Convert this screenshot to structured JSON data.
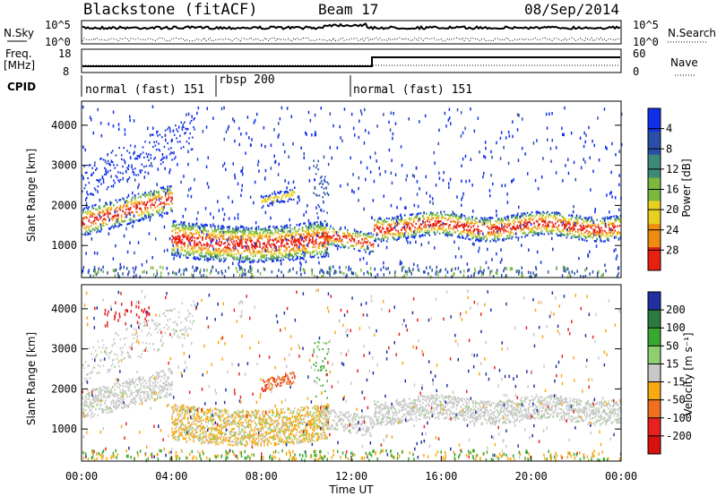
{
  "header": {
    "title": "Blackstone (fitACF)",
    "beam": "Beam 17",
    "date": "08/Sep/2014"
  },
  "top_panels": {
    "nsky_label": "N.Sky",
    "nsearch_label": "N.Search",
    "noise_ticks": [
      "10^5",
      "10^0"
    ],
    "freq_label_1": "Freq.",
    "freq_label_2": "[MHz]",
    "freq_ticks": [
      "18",
      "8"
    ],
    "nave_label": "Nave",
    "nave_ticks": [
      "60",
      "0"
    ],
    "cpid_label": "CPID",
    "cpid_segments": [
      {
        "label": "normal (fast) 151",
        "start_hour": 0
      },
      {
        "label": "rbsp 200",
        "start_hour": 6
      },
      {
        "label": "normal (fast) 151",
        "start_hour": 12
      }
    ]
  },
  "chart_data": [
    {
      "type": "heatmap",
      "name": "power",
      "ylabel": "Slant Range [km]",
      "y_ticks": [
        "1000",
        "2000",
        "3000",
        "4000"
      ],
      "ylim": [
        200,
        4600
      ],
      "colorbar_label": "Power [dB]",
      "colorbar_ticks": [
        "4",
        "8",
        "12",
        "16",
        "20",
        "24",
        "28"
      ],
      "colorbar_colors": [
        "#1030e8",
        "#2a4fa8",
        "#3d8a78",
        "#7ab840",
        "#e8d020",
        "#f08a10",
        "#e82010"
      ]
    },
    {
      "type": "heatmap",
      "name": "velocity",
      "ylabel": "Slant Range [km]",
      "y_ticks": [
        "1000",
        "2000",
        "3000",
        "4000"
      ],
      "ylim": [
        200,
        4600
      ],
      "colorbar_label": "Velocity [m s⁻¹]",
      "colorbar_ticks": [
        "200",
        "100",
        "50",
        "15",
        "-15",
        "-50",
        "-100",
        "-200"
      ],
      "colorbar_colors": [
        "#2030a0",
        "#2c7a40",
        "#38a830",
        "#8ed070",
        "#c8c8c8",
        "#f8a810",
        "#f07020",
        "#e82020",
        "#d81010"
      ]
    }
  ],
  "x_axis": {
    "ticks": [
      "00:00",
      "04:00",
      "08:00",
      "12:00",
      "16:00",
      "20:00",
      "00:00"
    ],
    "label": "Time UT"
  }
}
